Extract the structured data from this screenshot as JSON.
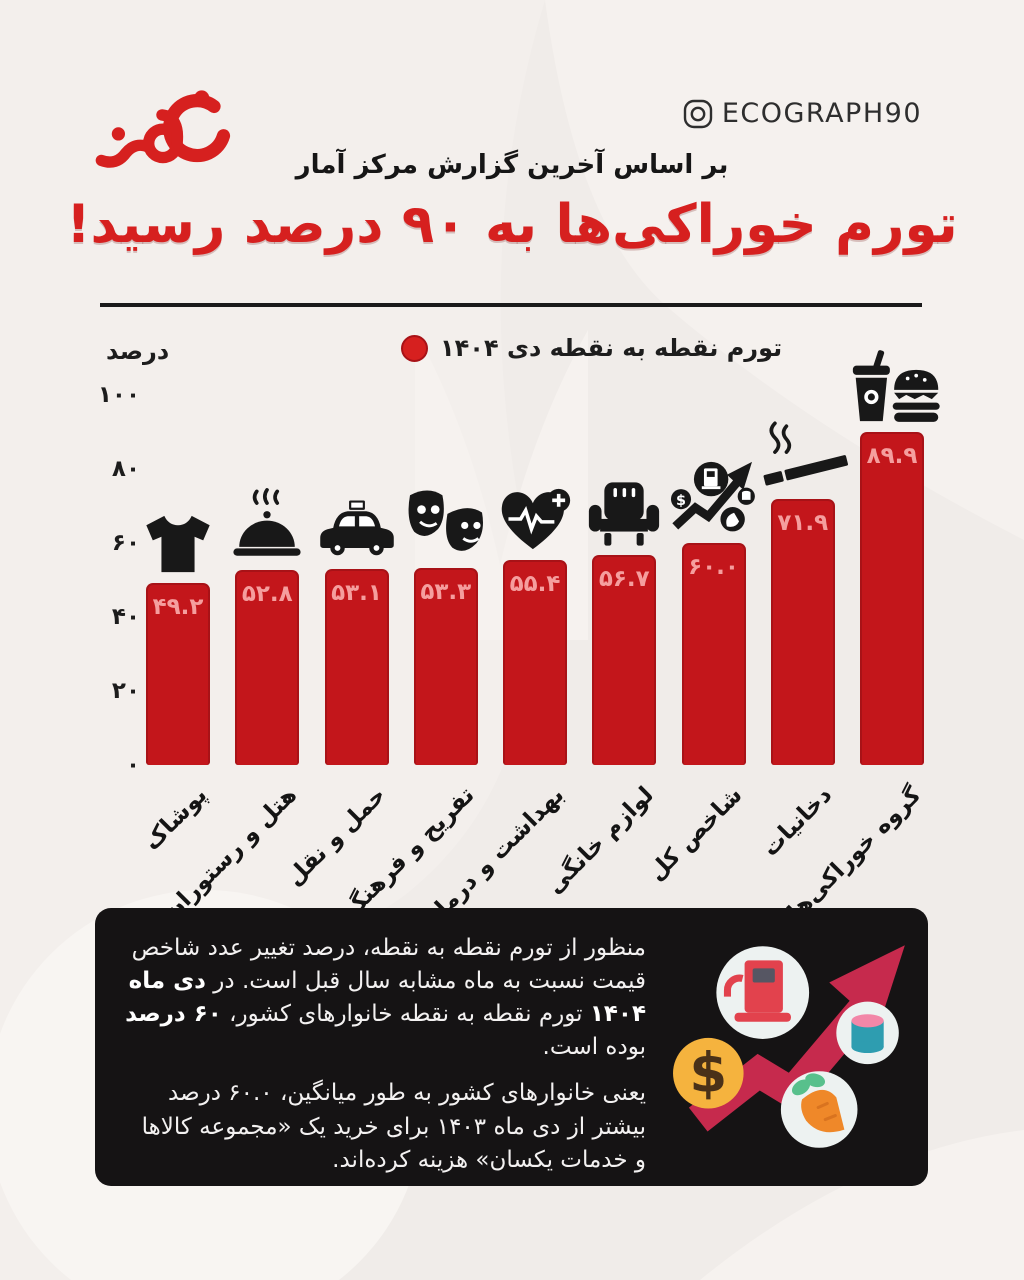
{
  "header": {
    "logo": "نود",
    "instagram_handle": "ECOGRAPH90",
    "subtitle": "بر اساس آخرین گزارش مرکز آمار",
    "title": "تورم خوراکی‌ها به ۹۰ درصد رسید!"
  },
  "chart_data": {
    "type": "bar",
    "title": "تورم خوراکی‌ها به ۹۰ درصد رسید!",
    "legend": "تورم نقطه به نقطه دی ۱۴۰۴",
    "legend_position": "top-center",
    "ylabel": "درصد",
    "xlabel": "",
    "ylim": [
      0,
      100
    ],
    "grid": false,
    "yticks": [
      {
        "value": 100,
        "label": "۱۰۰"
      },
      {
        "value": 80,
        "label": "۸۰"
      },
      {
        "value": 60,
        "label": "۶۰"
      },
      {
        "value": 40,
        "label": "۴۰"
      },
      {
        "value": 20,
        "label": "۲۰"
      },
      {
        "value": 0,
        "label": "۰"
      }
    ],
    "categories": [
      "پوشاک",
      "هتل و رستوران",
      "حمل و نقل",
      "تفریح و فرهنگ",
      "بهداشت و درمان",
      "لوازم خانگی",
      "شاخص کل",
      "دخانیات",
      "گروه خوراکی‌ها"
    ],
    "values": [
      49.2,
      52.8,
      53.1,
      53.3,
      55.4,
      56.7,
      60.0,
      71.9,
      89.9
    ],
    "value_labels": [
      "۴۹.۲",
      "۵۲.۸",
      "۵۳.۱",
      "۵۳.۳",
      "۵۵.۴",
      "۵۶.۷",
      "۶۰.۰",
      "۷۱.۹",
      "۸۹.۹"
    ],
    "icons": [
      "tshirt-icon",
      "cloche-icon",
      "taxi-icon",
      "theater-masks-icon",
      "health-icon",
      "armchair-icon",
      "index-basket-icon",
      "cigarette-icon",
      "fastfood-icon"
    ],
    "bar_color": "#c3161b",
    "value_label_color": "#f59e9e"
  },
  "footer": {
    "paragraphs": [
      [
        {
          "text": "منظور از تورم نقطه به نقطه، درصد تغییر عدد شاخص قیمت نسبت به ماه مشابه سال قبل است. در ",
          "bold": false
        },
        {
          "text": "دی ماه ۱۴۰۴",
          "bold": true
        },
        {
          "text": " تورم نقطه به نقطه خانوارهای کشور، ",
          "bold": false
        },
        {
          "text": "۶۰ درصد",
          "bold": true
        },
        {
          "text": " بوده است.",
          "bold": false
        }
      ],
      [
        {
          "text": "یعنی خانوارهای کشور به طور میانگین، ۶۰.۰ درصد بیشتر از دی ماه ۱۴۰۳ برای خرید یک «مجموعه کالاها و خدمات یکسان» هزینه کرده‌اند.",
          "bold": false
        }
      ]
    ],
    "graphic": "inflation-arrow-graphic",
    "graphic_colors": {
      "arrow": "#c62a4d",
      "coin": "#f5b33e",
      "pump": "#e2424d",
      "carrot": "#ef8829",
      "carrot_leaf": "#58c08c",
      "can_top": "#f287a8",
      "can_body": "#2e9db0"
    }
  },
  "colors": {
    "background": "#f0ece9",
    "accent_red": "#d6201f",
    "bar_red": "#c3161b",
    "box_black": "#151314",
    "text_dark": "#1b1b1b"
  }
}
